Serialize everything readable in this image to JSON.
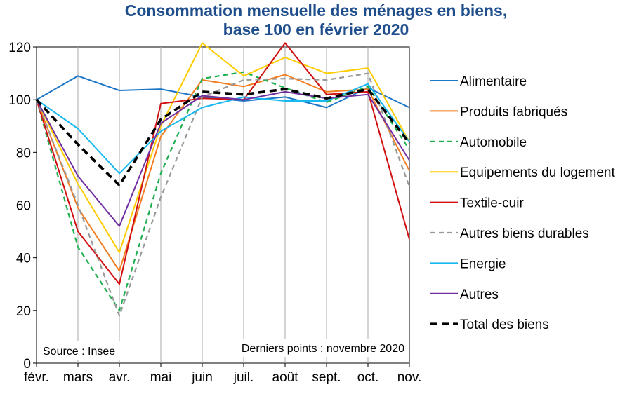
{
  "chart_data": {
    "type": "line",
    "title": "Consommation mensuelle des ménages en biens,",
    "subtitle": "base 100 en février 2020",
    "xlabel": "",
    "ylabel": "",
    "ylim": [
      0,
      120
    ],
    "yticks": [
      "0",
      "20",
      "40",
      "60",
      "80",
      "100",
      "120"
    ],
    "categories": [
      "févr.",
      "mars",
      "avr.",
      "mai",
      "juin",
      "juil.",
      "août",
      "sept.",
      "oct.",
      "nov."
    ],
    "grid": true,
    "legend_position": "right",
    "source": "Source : Insee",
    "note": "Derniers points : novembre 2020",
    "series": [
      {
        "name": "Alimentaire",
        "color": "#1f77c8",
        "dash": "solid",
        "values": [
          100,
          109,
          103.5,
          104,
          101,
          99.5,
          101,
          97,
          104.5,
          97
        ]
      },
      {
        "name": "Produits fabriqués",
        "color": "#f47d20",
        "dash": "solid",
        "values": [
          100,
          59,
          35,
          86,
          107.5,
          105,
          109.5,
          103,
          104,
          73
        ]
      },
      {
        "name": "Automobile",
        "color": "#20b050",
        "dash": "dashed",
        "values": [
          100,
          44,
          20,
          72,
          108,
          110.5,
          104.5,
          99,
          105,
          81
        ]
      },
      {
        "name": "Equipements du logement",
        "color": "#ffcc00",
        "dash": "solid",
        "values": [
          100,
          68,
          42,
          90,
          121.5,
          109,
          116,
          110,
          112,
          84
        ]
      },
      {
        "name": "Textile-cuir",
        "color": "#d01010",
        "dash": "solid",
        "values": [
          100,
          50,
          30,
          98.5,
          100.5,
          100,
          121.5,
          102,
          103,
          47
        ]
      },
      {
        "name": "Autres biens durables",
        "color": "#999999",
        "dash": "dashed",
        "values": [
          100,
          60,
          18,
          63,
          101,
          107.5,
          108,
          107.5,
          110,
          67
        ]
      },
      {
        "name": "Energie",
        "color": "#18b8f0",
        "dash": "solid",
        "values": [
          100,
          89,
          72,
          88,
          97,
          101,
          99.5,
          99.5,
          106,
          84
        ]
      },
      {
        "name": "Autres",
        "color": "#7030a0",
        "dash": "solid",
        "values": [
          100,
          71,
          52,
          91,
          101.5,
          100,
          103,
          100.5,
          102,
          77
        ]
      },
      {
        "name": "Total des biens",
        "color": "#000000",
        "dash": "thick-dashed",
        "values": [
          100,
          83,
          67.5,
          92.5,
          103,
          102,
          104,
          100.5,
          104,
          83.5
        ]
      }
    ]
  }
}
